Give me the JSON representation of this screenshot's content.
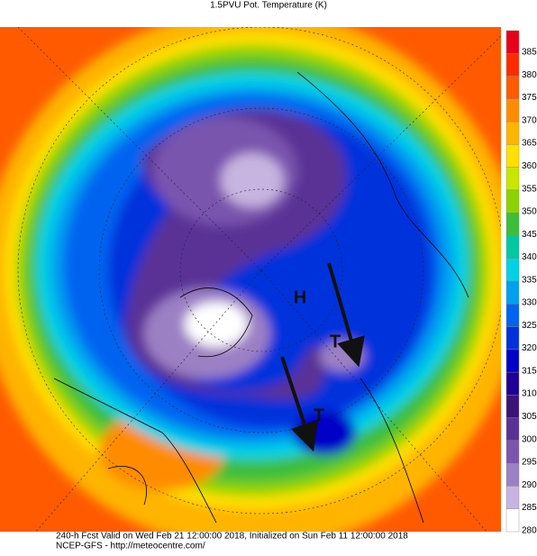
{
  "title": "1.5PVU Pot. Temperature (K)",
  "colorbar": {
    "ticks": [
      385,
      380,
      375,
      370,
      365,
      360,
      355,
      350,
      345,
      340,
      335,
      330,
      325,
      320,
      315,
      310,
      305,
      300,
      295,
      290,
      285,
      280
    ],
    "colors": [
      "#e8001a",
      "#ff2a00",
      "#ff5a00",
      "#ff8c00",
      "#ffb400",
      "#ffe000",
      "#c8e600",
      "#8cd200",
      "#3cbe3c",
      "#00c8a0",
      "#00d2e6",
      "#00a0f0",
      "#0064f0",
      "#0032dc",
      "#0000c8",
      "#1e0096",
      "#3c1478",
      "#5a3296",
      "#7a55ad",
      "#9c80c4",
      "#c8b4e0",
      "#ffffff"
    ]
  },
  "annotations": [
    "H",
    "T",
    "T"
  ],
  "footer": [
    "240-h Fcst Valid on Wed Feb 21 12:00:00 2018, Initialized on Sun Feb 11 12:00:00 2018",
    "NCEP-GFS  - http://meteocentre.com/"
  ]
}
